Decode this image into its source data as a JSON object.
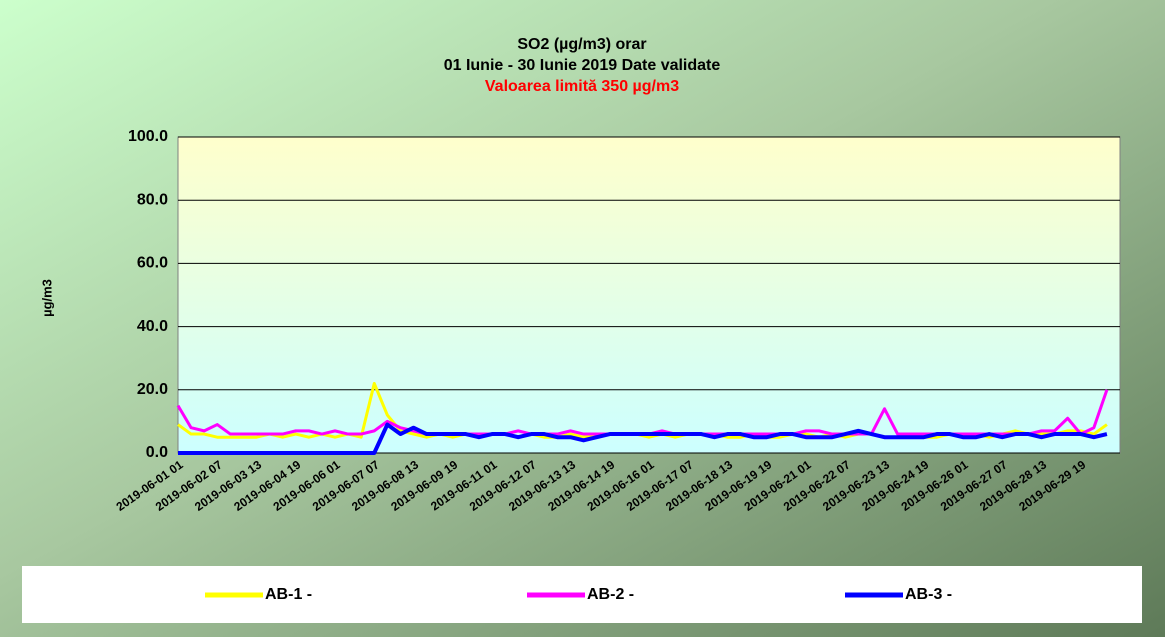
{
  "chart_data": {
    "type": "line",
    "title": "SO2 (µg/m3) orar",
    "subtitle": "01 Iunie - 30 Iunie 2019 Date validate",
    "annotation": "Valoarea limită 350 µg/m3",
    "y_label": "µg/m3",
    "categories": [
      "2019-06-01 01",
      null,
      null,
      "2019-06-02 07",
      null,
      null,
      "2019-06-03 13",
      null,
      null,
      "2019-06-04 19",
      null,
      null,
      "2019-06-06 01",
      null,
      null,
      "2019-06-07 07",
      null,
      null,
      "2019-06-08 13",
      null,
      null,
      "2019-06-09 19",
      null,
      null,
      "2019-06-11 01",
      null,
      null,
      "2019-06-12 07",
      null,
      null,
      "2019-06-13 13",
      null,
      null,
      "2019-06-14 19",
      null,
      null,
      "2019-06-16 01",
      null,
      null,
      "2019-06-17 07",
      null,
      null,
      "2019-06-18 13",
      null,
      null,
      "2019-06-19 19",
      null,
      null,
      "2019-06-21 01",
      null,
      null,
      "2019-06-22 07",
      null,
      null,
      "2019-06-23 13",
      null,
      null,
      "2019-06-24 19",
      null,
      null,
      "2019-06-26 01",
      null,
      null,
      "2019-06-27 07",
      null,
      null,
      "2019-06-28 13",
      null,
      null,
      "2019-06-29 19",
      null,
      null
    ],
    "series": [
      {
        "name": "AB-1 -",
        "color": "#ffff00",
        "values": [
          9,
          6,
          6,
          5,
          5,
          5,
          5,
          6,
          5,
          6,
          5,
          6,
          5,
          6,
          5,
          22,
          12,
          7,
          6,
          5,
          6,
          5,
          6,
          5,
          6,
          6,
          5,
          6,
          5,
          5,
          6,
          5,
          6,
          6,
          6,
          6,
          5,
          6,
          5,
          6,
          6,
          6,
          5,
          5,
          6,
          5,
          5,
          6,
          6,
          5,
          6,
          5,
          6,
          6,
          5,
          5,
          6,
          5,
          5,
          6,
          6,
          6,
          5,
          6,
          7,
          6,
          6,
          6,
          7,
          7,
          6,
          9
        ]
      },
      {
        "name": "AB-2 -",
        "color": "#ff00ff",
        "values": [
          15,
          8,
          7,
          9,
          6,
          6,
          6,
          6,
          6,
          7,
          7,
          6,
          7,
          6,
          6,
          7,
          10,
          8,
          7,
          6,
          6,
          6,
          6,
          6,
          6,
          6,
          7,
          6,
          6,
          6,
          7,
          6,
          6,
          6,
          6,
          6,
          6,
          7,
          6,
          6,
          6,
          6,
          6,
          6,
          6,
          6,
          6,
          6,
          7,
          7,
          6,
          6,
          6,
          6,
          14,
          6,
          6,
          6,
          6,
          6,
          6,
          6,
          6,
          6,
          6,
          6,
          7,
          7,
          11,
          6,
          8,
          20
        ]
      },
      {
        "name": "AB-3 -",
        "color": "#0000ff",
        "values": [
          0,
          0,
          0,
          0,
          0,
          0,
          0,
          0,
          0,
          0,
          0,
          0,
          0,
          0,
          0,
          0,
          9,
          6,
          8,
          6,
          6,
          6,
          6,
          5,
          6,
          6,
          5,
          6,
          6,
          5,
          5,
          4,
          5,
          6,
          6,
          6,
          6,
          6,
          6,
          6,
          6,
          5,
          6,
          6,
          5,
          5,
          6,
          6,
          5,
          5,
          5,
          6,
          7,
          6,
          5,
          5,
          5,
          5,
          6,
          6,
          5,
          5,
          6,
          5,
          6,
          6,
          5,
          6,
          6,
          6,
          5,
          6
        ]
      }
    ],
    "ylim": [
      0,
      100
    ],
    "yticks": [
      {
        "value": 0,
        "label": "0.0"
      },
      {
        "value": 20,
        "label": "20.0"
      },
      {
        "value": 40,
        "label": "40.0"
      },
      {
        "value": 60,
        "label": "60.0"
      },
      {
        "value": 80,
        "label": "80.0"
      },
      {
        "value": 100,
        "label": "100.0"
      }
    ],
    "grid": true,
    "legend": "bottom"
  }
}
